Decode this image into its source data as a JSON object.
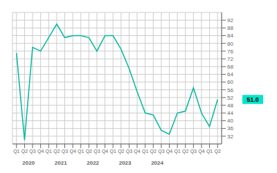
{
  "chart_data": {
    "type": "line",
    "categories": [
      "Q1",
      "Q2",
      "Q3",
      "Q4",
      "Q1",
      "Q2",
      "Q3",
      "Q4",
      "Q1",
      "Q2",
      "Q3",
      "Q4",
      "Q1",
      "Q2",
      "Q3",
      "Q4",
      "Q1",
      "Q2",
      "Q3",
      "Q4",
      "Q1",
      "Q2",
      "Q3",
      "Q4",
      "Q1",
      "Q2"
    ],
    "values": [
      75,
      30,
      78,
      76,
      83,
      90,
      83,
      84,
      84,
      83,
      76,
      84,
      84,
      77,
      67,
      55,
      44,
      43,
      35,
      33,
      44,
      45,
      57,
      44,
      37,
      51
    ],
    "color": "#00b8a0",
    "ylim": [
      28,
      96
    ],
    "yticks": [
      32,
      36,
      40,
      44,
      48,
      52,
      56,
      60,
      64,
      68,
      72,
      76,
      80,
      84,
      88,
      92
    ],
    "grid": true,
    "annotations": [
      {
        "text": "2020",
        "x": 1.5
      },
      {
        "text": "2021",
        "x": 5.5
      },
      {
        "text": "2022",
        "x": 9.5
      },
      {
        "text": "2023",
        "x": 13.5
      },
      {
        "text": "2024",
        "x": 17.5
      },
      {
        "text": "51.0",
        "y": 51.0,
        "color": "#00e5cc"
      }
    ]
  }
}
